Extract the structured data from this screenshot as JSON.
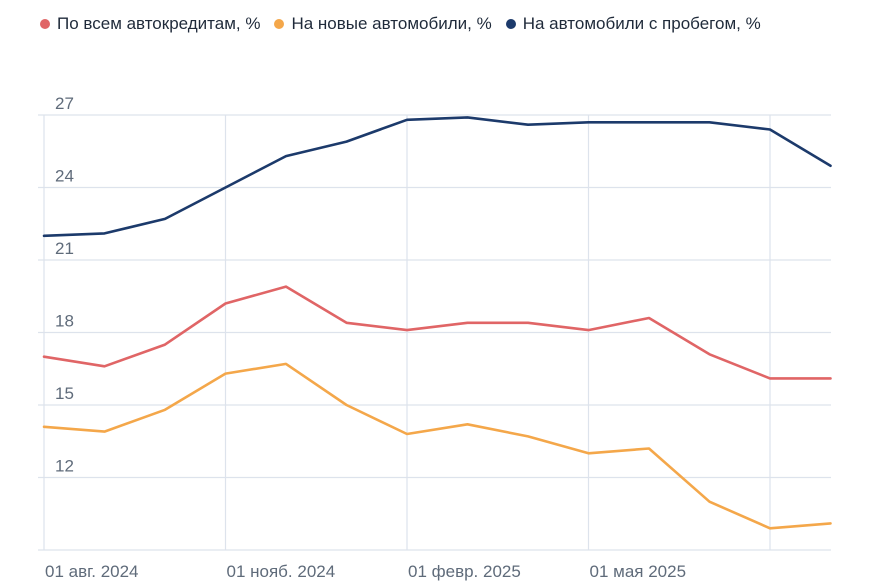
{
  "chart_data": {
    "type": "line",
    "title": "",
    "xlabel": "",
    "ylabel": "",
    "x": [
      "2024-08",
      "2024-09",
      "2024-10",
      "2024-11",
      "2024-12",
      "2025-01",
      "2025-02",
      "2025-03",
      "2025-04",
      "2025-05",
      "2025-06",
      "2025-07",
      "2025-08",
      "2025-09"
    ],
    "x_ticks": [
      {
        "index": 0,
        "label": "01 авг. 2024"
      },
      {
        "index": 3,
        "label": "01 нояб. 2024"
      },
      {
        "index": 6,
        "label": "01 февр. 2025"
      },
      {
        "index": 9,
        "label": "01 мая 2025"
      }
    ],
    "y_ticks": [
      12,
      15,
      18,
      21,
      24,
      27
    ],
    "ylim": [
      9,
      27
    ],
    "grid": true,
    "legend_position": "top-left",
    "series": [
      {
        "name": "По всем автокредитам, %",
        "color": "#e06566",
        "values": [
          17.0,
          16.6,
          17.5,
          19.2,
          19.9,
          18.4,
          18.1,
          18.4,
          18.4,
          18.1,
          18.6,
          17.1,
          16.1,
          16.1
        ]
      },
      {
        "name": "На новые автомобили, %",
        "color": "#f4a74a",
        "values": [
          14.1,
          13.9,
          14.8,
          16.3,
          16.7,
          15.0,
          13.8,
          14.2,
          13.7,
          13.0,
          13.2,
          11.0,
          9.9,
          10.1
        ]
      },
      {
        "name": "На автомобили с пробегом, %",
        "color": "#1c3a6b",
        "values": [
          22.0,
          22.1,
          22.7,
          24.0,
          25.3,
          25.9,
          26.8,
          26.9,
          26.6,
          26.7,
          26.7,
          26.7,
          26.4,
          24.9
        ]
      }
    ]
  }
}
